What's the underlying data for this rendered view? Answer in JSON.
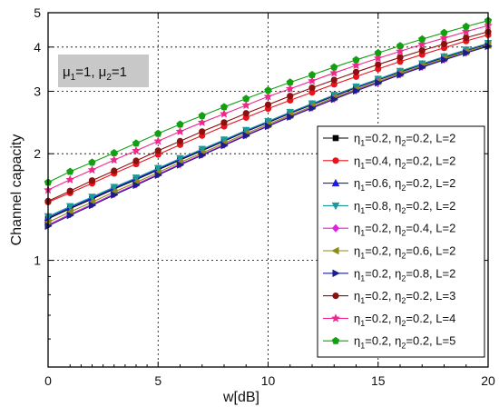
{
  "chart_data": {
    "type": "line",
    "title": "",
    "xlabel": "w[dB]",
    "ylabel": "Channel capacity",
    "xlim": [
      0,
      20
    ],
    "ylim": [
      0.5,
      5
    ],
    "yscale": "log",
    "grid": true,
    "x_ticks": [
      0,
      5,
      10,
      15,
      20
    ],
    "y_ticks": [
      {
        "value": 1,
        "label": "1"
      },
      {
        "value": 2,
        "label": "2"
      },
      {
        "value": 3,
        "label": "3"
      },
      {
        "value": 4,
        "label": "4"
      },
      {
        "value": 5,
        "label": "5"
      }
    ],
    "legend_position": "right",
    "annotation": {
      "text": "μ1=1, μ2=1",
      "mu1": "1",
      "mu2": "1"
    },
    "x": [
      0,
      1,
      2,
      3,
      4,
      5,
      6,
      7,
      8,
      9,
      10,
      11,
      12,
      13,
      14,
      15,
      16,
      17,
      18,
      19,
      20
    ],
    "series": [
      {
        "eta1": "0.2",
        "eta2": "0.2",
        "L": "2",
        "color": "#000000",
        "marker": "square",
        "values": [
          1.31,
          1.4,
          1.49,
          1.59,
          1.69,
          1.8,
          1.92,
          2.04,
          2.17,
          2.31,
          2.45,
          2.6,
          2.75,
          2.91,
          3.07,
          3.23,
          3.4,
          3.57,
          3.74,
          3.91,
          4.08
        ]
      },
      {
        "eta1": "0.4",
        "eta2": "0.2",
        "L": "2",
        "color": "#e8141c",
        "marker": "circle",
        "values": [
          1.46,
          1.55,
          1.65,
          1.76,
          1.87,
          1.99,
          2.12,
          2.25,
          2.39,
          2.53,
          2.68,
          2.83,
          2.98,
          3.14,
          3.3,
          3.47,
          3.64,
          3.81,
          3.98,
          4.16,
          4.33
        ]
      },
      {
        "eta1": "0.6",
        "eta2": "0.2",
        "L": "2",
        "color": "#1a1ae0",
        "marker": "triangle-up",
        "values": [
          1.32,
          1.41,
          1.5,
          1.6,
          1.7,
          1.81,
          1.93,
          2.05,
          2.18,
          2.32,
          2.46,
          2.61,
          2.76,
          2.92,
          3.08,
          3.24,
          3.41,
          3.58,
          3.75,
          3.92,
          4.09
        ]
      },
      {
        "eta1": "0.8",
        "eta2": "0.2",
        "L": "2",
        "color": "#1c9a9a",
        "marker": "triangle-down",
        "values": [
          1.33,
          1.42,
          1.51,
          1.61,
          1.71,
          1.82,
          1.94,
          2.06,
          2.19,
          2.33,
          2.47,
          2.62,
          2.77,
          2.93,
          3.09,
          3.25,
          3.42,
          3.59,
          3.76,
          3.93,
          4.1
        ]
      },
      {
        "eta1": "0.2",
        "eta2": "0.4",
        "L": "2",
        "color": "#e020e0",
        "marker": "diamond",
        "values": [
          1.26,
          1.35,
          1.44,
          1.54,
          1.64,
          1.75,
          1.87,
          1.99,
          2.12,
          2.26,
          2.4,
          2.55,
          2.7,
          2.86,
          3.02,
          3.18,
          3.35,
          3.52,
          3.69,
          3.86,
          4.03
        ]
      },
      {
        "eta1": "0.2",
        "eta2": "0.6",
        "L": "2",
        "color": "#8b8b1a",
        "marker": "triangle-left",
        "values": [
          1.28,
          1.37,
          1.46,
          1.56,
          1.66,
          1.77,
          1.89,
          2.01,
          2.14,
          2.28,
          2.42,
          2.57,
          2.72,
          2.88,
          3.04,
          3.2,
          3.37,
          3.54,
          3.71,
          3.88,
          4.05
        ]
      },
      {
        "eta1": "0.2",
        "eta2": "0.8",
        "L": "2",
        "color": "#1c1c8c",
        "marker": "triangle-right",
        "values": [
          1.25,
          1.34,
          1.43,
          1.53,
          1.63,
          1.74,
          1.86,
          1.98,
          2.11,
          2.25,
          2.39,
          2.54,
          2.69,
          2.85,
          3.01,
          3.17,
          3.34,
          3.51,
          3.68,
          3.85,
          4.02
        ]
      },
      {
        "eta1": "0.2",
        "eta2": "0.2",
        "L": "3",
        "color": "#8b1010",
        "marker": "circle",
        "values": [
          1.47,
          1.57,
          1.68,
          1.79,
          1.91,
          2.04,
          2.17,
          2.31,
          2.45,
          2.6,
          2.75,
          2.91,
          3.07,
          3.23,
          3.4,
          3.57,
          3.74,
          3.91,
          4.08,
          4.25,
          4.42
        ]
      },
      {
        "eta1": "0.2",
        "eta2": "0.2",
        "L": "4",
        "color": "#f0288c",
        "marker": "star",
        "values": [
          1.58,
          1.69,
          1.8,
          1.92,
          2.04,
          2.17,
          2.31,
          2.45,
          2.59,
          2.74,
          2.9,
          3.05,
          3.21,
          3.38,
          3.55,
          3.72,
          3.89,
          4.07,
          4.24,
          4.42,
          4.6
        ]
      },
      {
        "eta1": "0.2",
        "eta2": "0.2",
        "L": "5",
        "color": "#10a010",
        "marker": "pentagon",
        "values": [
          1.66,
          1.78,
          1.89,
          2.01,
          2.14,
          2.28,
          2.42,
          2.56,
          2.71,
          2.86,
          3.02,
          3.18,
          3.34,
          3.51,
          3.68,
          3.85,
          4.03,
          4.21,
          4.39,
          4.57,
          4.75
        ]
      }
    ]
  }
}
